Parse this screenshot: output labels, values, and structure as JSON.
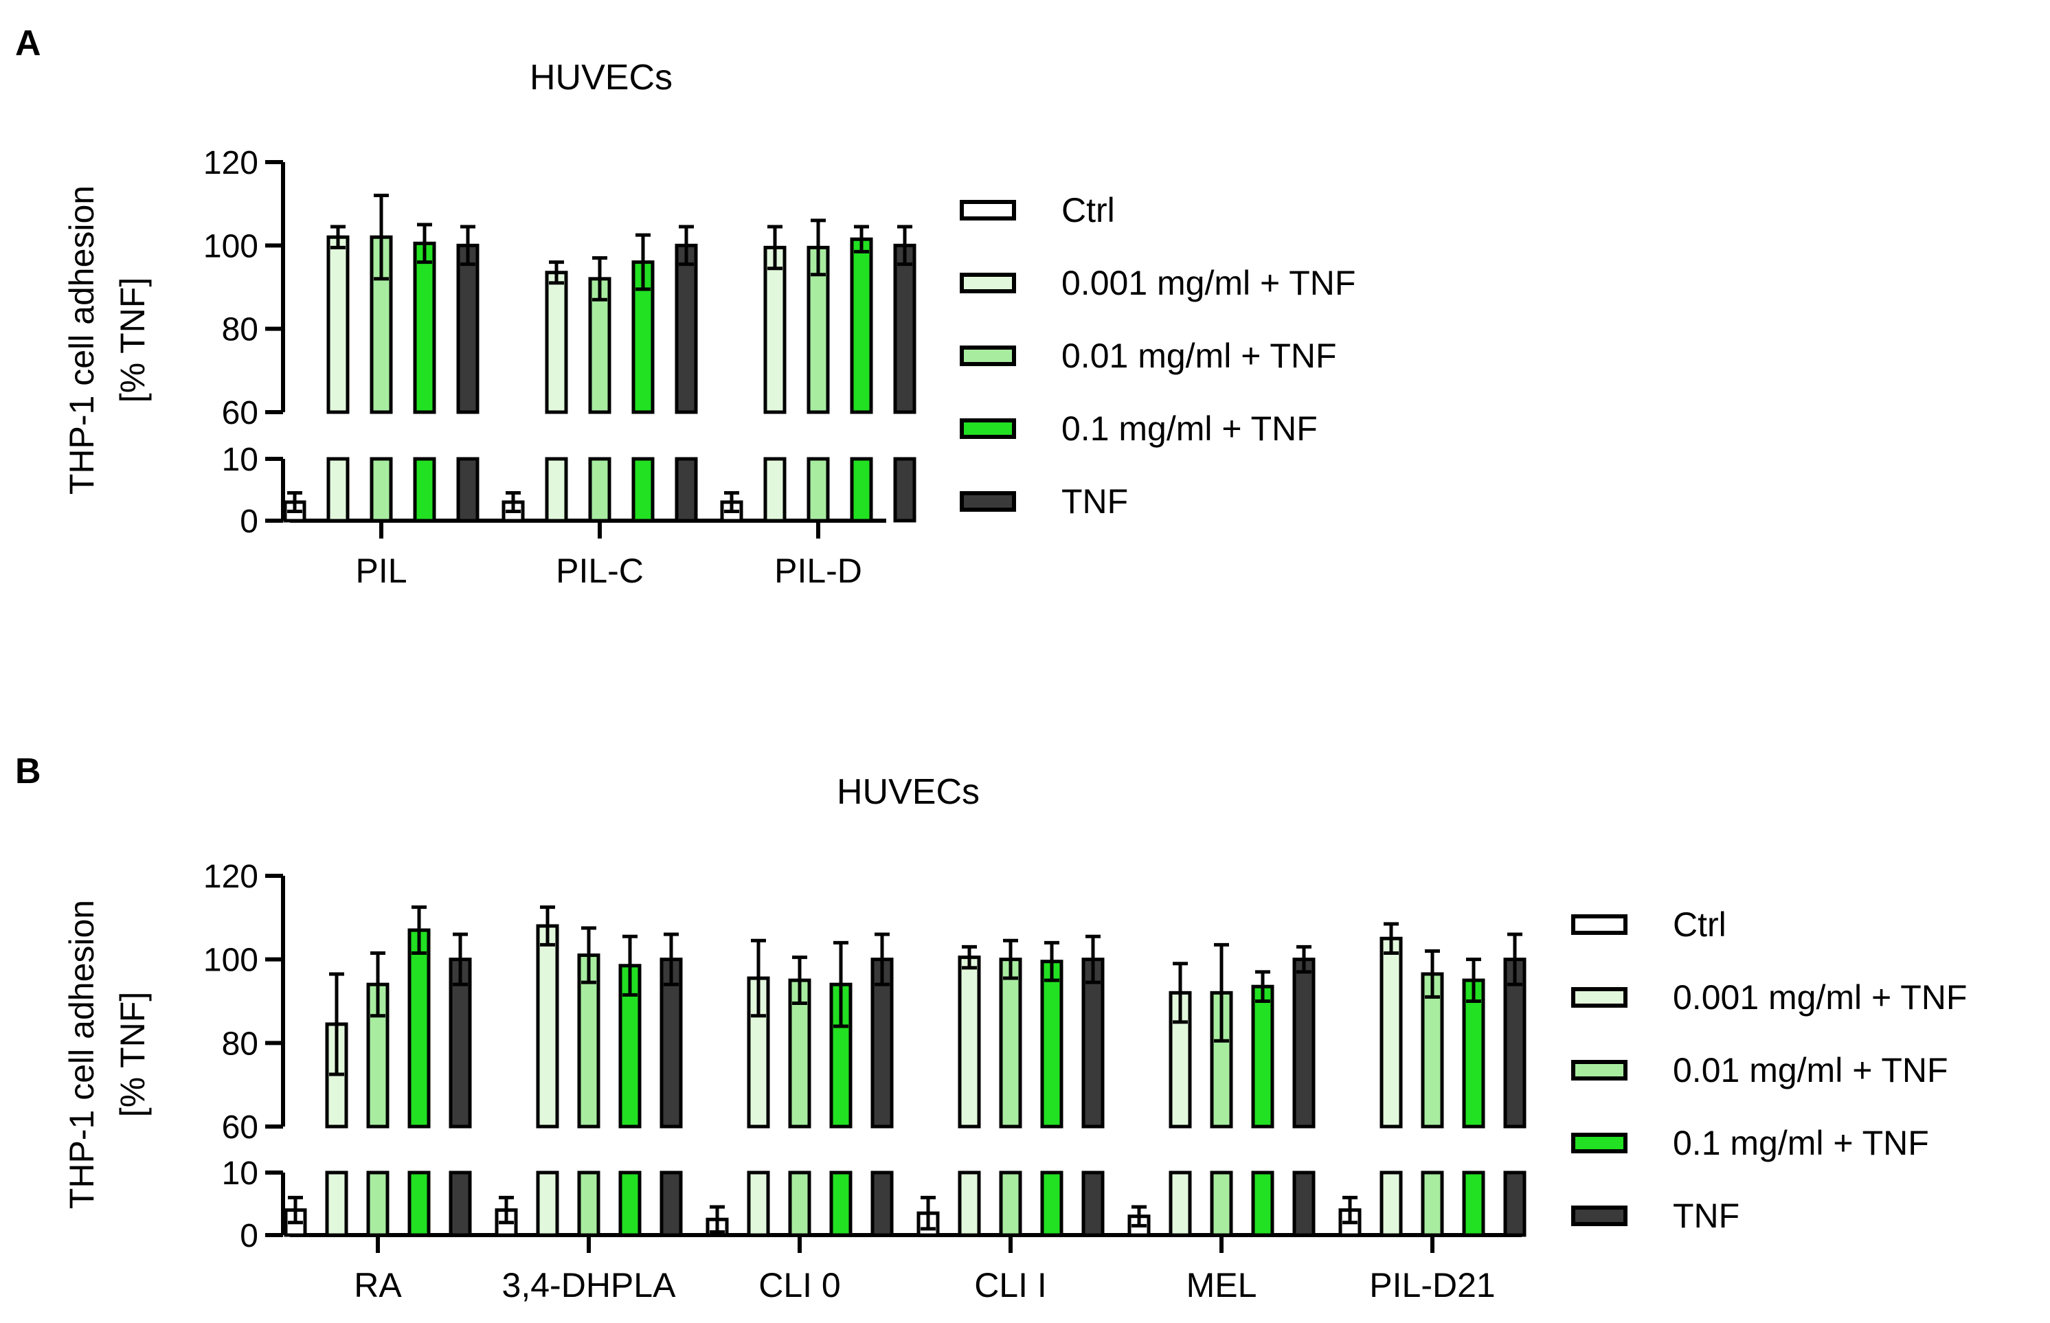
{
  "colors": {
    "Ctrl": "#ffffff",
    "0.001 mg/ml + TNF": "#e2f8dc",
    "0.01 mg/ml + TNF": "#a8eca0",
    "0.1 mg/ml + TNF": "#22e022",
    "TNF": "#3a3a3a",
    "outline": "#000000"
  },
  "chart_data": [
    {
      "panel": "A",
      "type": "bar",
      "title": "HUVECs",
      "ylabel_line1": "THP-1 cell adhesion",
      "ylabel_line2": "[% TNF]",
      "xlabel": "",
      "y_axis_break": true,
      "lower_segment_ylim": [
        0,
        10
      ],
      "upper_segment_ylim": [
        60,
        120
      ],
      "y_ticks_lower": [
        0,
        10
      ],
      "y_ticks_upper": [
        60,
        80,
        100,
        120
      ],
      "legend_position": "right",
      "categories": [
        "PIL",
        "PIL-C",
        "PIL-D"
      ],
      "series": [
        {
          "name": "Ctrl",
          "values": [
            3,
            3,
            3
          ],
          "errors": [
            1.5,
            1.5,
            1.5
          ]
        },
        {
          "name": "0.001 mg/ml + TNF",
          "values": [
            102,
            93.5,
            99.5
          ],
          "errors": [
            2.5,
            2.5,
            5
          ]
        },
        {
          "name": "0.01 mg/ml + TNF",
          "values": [
            102,
            92,
            99.5
          ],
          "errors": [
            10,
            5,
            6.5
          ]
        },
        {
          "name": "0.1 mg/ml + TNF",
          "values": [
            100.5,
            96,
            101.5
          ],
          "errors": [
            4.5,
            6.5,
            3
          ]
        },
        {
          "name": "TNF",
          "values": [
            100,
            100,
            100
          ],
          "errors": [
            4.5,
            4.5,
            4.5
          ]
        }
      ]
    },
    {
      "panel": "B",
      "type": "bar",
      "title": "HUVECs",
      "ylabel_line1": "THP-1 cell adhesion",
      "ylabel_line2": "[% TNF]",
      "xlabel": "",
      "y_axis_break": true,
      "lower_segment_ylim": [
        0,
        10
      ],
      "upper_segment_ylim": [
        60,
        120
      ],
      "y_ticks_lower": [
        0,
        10
      ],
      "y_ticks_upper": [
        60,
        80,
        100,
        120
      ],
      "legend_position": "right",
      "categories": [
        "RA",
        "3,4-DHPLA",
        "CLI 0",
        "CLI I",
        "MEL",
        "PIL-D21"
      ],
      "series": [
        {
          "name": "Ctrl",
          "values": [
            4,
            4,
            2.5,
            3.5,
            3,
            4
          ],
          "errors": [
            2,
            2,
            2,
            2.5,
            1.5,
            2
          ]
        },
        {
          "name": "0.001 mg/ml + TNF",
          "values": [
            84.5,
            108,
            95.5,
            100.5,
            92,
            105
          ],
          "errors": [
            12,
            4.5,
            9,
            2.5,
            7,
            3.5
          ]
        },
        {
          "name": "0.01 mg/ml + TNF",
          "values": [
            94,
            101,
            95,
            100,
            92,
            96.5
          ],
          "errors": [
            7.5,
            6.5,
            5.5,
            4.5,
            11.5,
            5.5
          ]
        },
        {
          "name": "0.1 mg/ml + TNF",
          "values": [
            107,
            98.5,
            94,
            99.5,
            93.5,
            95
          ],
          "errors": [
            5.5,
            7,
            10,
            4.5,
            3.5,
            5
          ]
        },
        {
          "name": "TNF",
          "values": [
            100,
            100,
            100,
            100,
            100,
            100
          ],
          "errors": [
            6,
            6,
            6,
            5.5,
            3,
            6
          ]
        }
      ]
    }
  ],
  "panels": [
    {
      "label": "A"
    },
    {
      "label": "B"
    }
  ]
}
